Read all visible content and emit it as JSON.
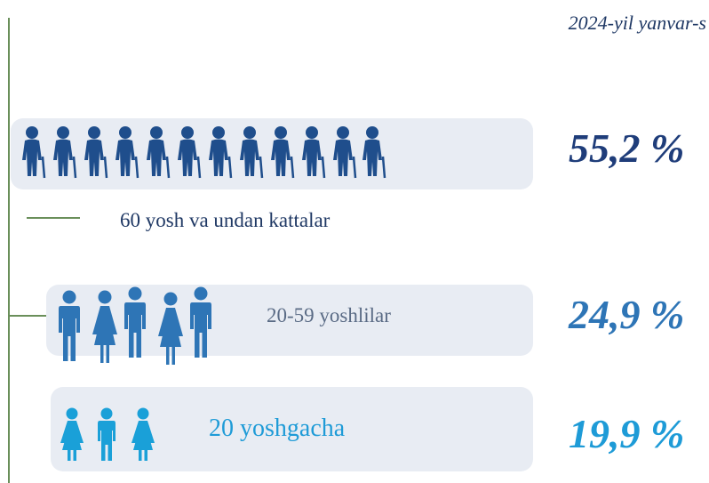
{
  "date": "2024-yil yanvar-s",
  "groups": [
    {
      "label": "60 yosh va undan kattalar",
      "percent": "55,2 %"
    },
    {
      "label": "20-59 yoshlilar",
      "percent": "24,9 %"
    },
    {
      "label": "20 yoshgacha",
      "percent": "19,9 %"
    }
  ]
}
